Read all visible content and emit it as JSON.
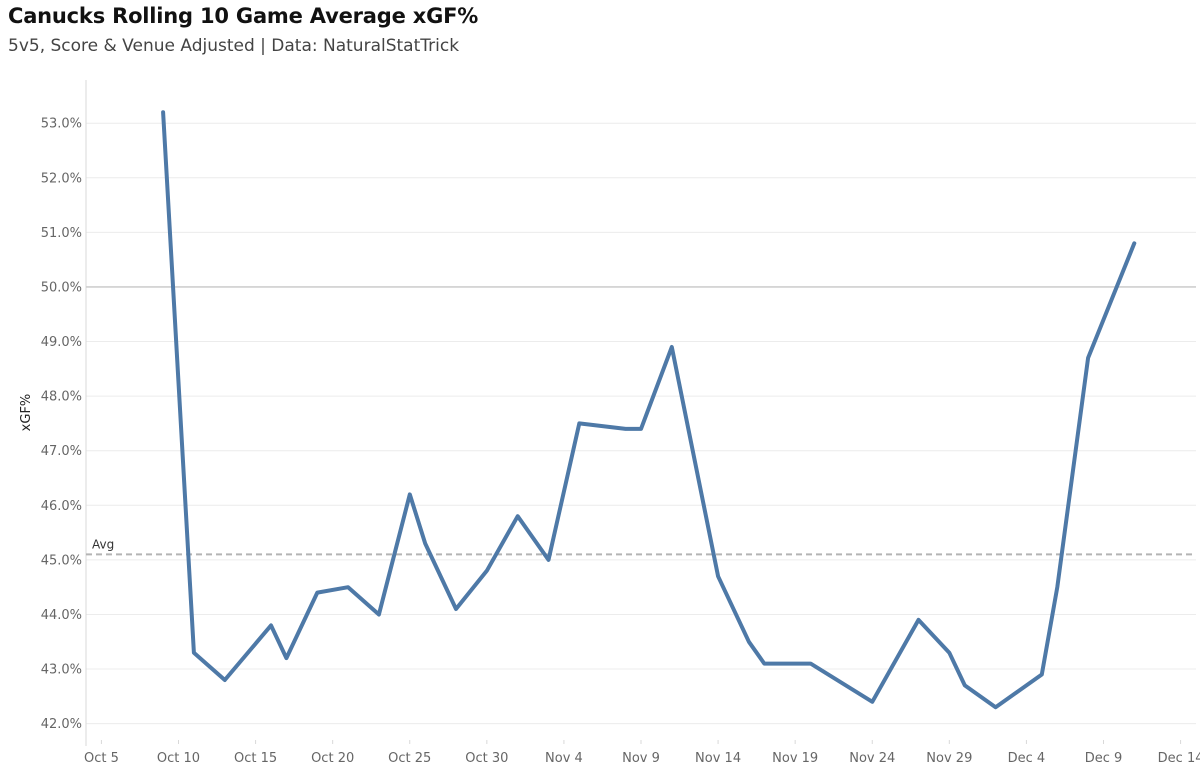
{
  "header": {
    "title": "Canucks Rolling 10 Game Average xGF%",
    "subtitle": "5v5, Score & Venue Adjusted | Data: NaturalStatTrick"
  },
  "colors": {
    "line": "#4e79a7",
    "grid": "#ececec",
    "reference": "#cfcfcf",
    "average": "#b4b4b4"
  },
  "chart_data": {
    "type": "line",
    "title": "Canucks Rolling 10 Game Average xGF%",
    "ylabel": "xGF%",
    "xlabel": "",
    "ylim": [
      41.7,
      53.7
    ],
    "xlim": [
      "Oct 4",
      "Dec 15"
    ],
    "grid": true,
    "y_ticks": [
      {
        "value": 53,
        "label": "53.0%"
      },
      {
        "value": 52,
        "label": "52.0%"
      },
      {
        "value": 51,
        "label": "51.0%"
      },
      {
        "value": 50,
        "label": "50.0%"
      },
      {
        "value": 49,
        "label": "49.0%"
      },
      {
        "value": 48,
        "label": "48.0%"
      },
      {
        "value": 47,
        "label": "47.0%"
      },
      {
        "value": 46,
        "label": "46.0%"
      },
      {
        "value": 45,
        "label": "45.0%"
      },
      {
        "value": 44,
        "label": "44.0%"
      },
      {
        "value": 43,
        "label": "43.0%"
      },
      {
        "value": 42,
        "label": "42.0%"
      }
    ],
    "x_ticks": [
      {
        "date": "Oct 5",
        "label": "Oct 5"
      },
      {
        "date": "Oct 10",
        "label": "Oct 10"
      },
      {
        "date": "Oct 15",
        "label": "Oct 15"
      },
      {
        "date": "Oct 20",
        "label": "Oct 20"
      },
      {
        "date": "Oct 25",
        "label": "Oct 25"
      },
      {
        "date": "Oct 30",
        "label": "Oct 30"
      },
      {
        "date": "Nov 4",
        "label": "Nov 4"
      },
      {
        "date": "Nov 9",
        "label": "Nov 9"
      },
      {
        "date": "Nov 14",
        "label": "Nov 14"
      },
      {
        "date": "Nov 19",
        "label": "Nov 19"
      },
      {
        "date": "Nov 24",
        "label": "Nov 24"
      },
      {
        "date": "Nov 29",
        "label": "Nov 29"
      },
      {
        "date": "Dec 4",
        "label": "Dec 4"
      },
      {
        "date": "Dec 9",
        "label": "Dec 9"
      },
      {
        "date": "Dec 14",
        "label": "Dec 14"
      }
    ],
    "reference_line": {
      "value": 50.0
    },
    "average_line": {
      "value": 45.1,
      "label": "Avg"
    },
    "series": [
      {
        "points": [
          {
            "x": "Oct 9",
            "y": 53.2
          },
          {
            "x": "Oct 11",
            "y": 43.3
          },
          {
            "x": "Oct 13",
            "y": 42.8
          },
          {
            "x": "Oct 16",
            "y": 43.8
          },
          {
            "x": "Oct 17",
            "y": 43.2
          },
          {
            "x": "Oct 19",
            "y": 44.4
          },
          {
            "x": "Oct 21",
            "y": 44.5
          },
          {
            "x": "Oct 23",
            "y": 44.0
          },
          {
            "x": "Oct 25",
            "y": 46.2
          },
          {
            "x": "Oct 26",
            "y": 45.3
          },
          {
            "x": "Oct 28",
            "y": 44.1
          },
          {
            "x": "Oct 30",
            "y": 44.8
          },
          {
            "x": "Nov 1",
            "y": 45.8
          },
          {
            "x": "Nov 3",
            "y": 45.0
          },
          {
            "x": "Nov 5",
            "y": 47.5
          },
          {
            "x": "Nov 8",
            "y": 47.4
          },
          {
            "x": "Nov 9",
            "y": 47.4
          },
          {
            "x": "Nov 11",
            "y": 48.9
          },
          {
            "x": "Nov 14",
            "y": 44.7
          },
          {
            "x": "Nov 16",
            "y": 43.5
          },
          {
            "x": "Nov 17",
            "y": 43.1
          },
          {
            "x": "Nov 20",
            "y": 43.1
          },
          {
            "x": "Nov 24",
            "y": 42.4
          },
          {
            "x": "Nov 27",
            "y": 43.9
          },
          {
            "x": "Nov 29",
            "y": 43.3
          },
          {
            "x": "Nov 30",
            "y": 42.7
          },
          {
            "x": "Dec 2",
            "y": 42.3
          },
          {
            "x": "Dec 5",
            "y": 42.9
          },
          {
            "x": "Dec 6",
            "y": 44.5
          },
          {
            "x": "Dec 8",
            "y": 48.7
          },
          {
            "x": "Dec 11",
            "y": 50.8
          }
        ]
      }
    ]
  }
}
